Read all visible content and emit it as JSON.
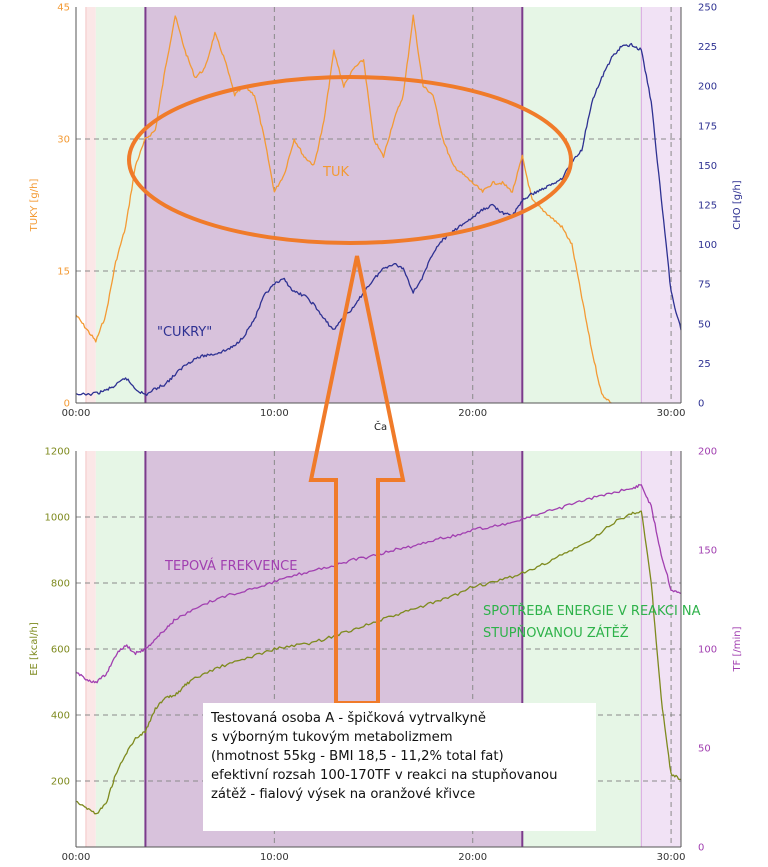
{
  "colors": {
    "fat": "#f39a34",
    "cho": "#2e3192",
    "ee": "#7e8a1e",
    "tf": "#a13fb0",
    "annotation": "#f07b2a",
    "stage_purple": "#d8c2dc",
    "zone_green": "#e6f6e6",
    "zone_pink": "#fbe7e7",
    "zone_lilac": "#f1e2f5",
    "ee_label": "#2eb24a"
  },
  "chart_data": [
    {
      "type": "line",
      "x_unit": "minutes",
      "xlabel": "Ča",
      "x_ticks": [
        "00:00",
        "10:00",
        "20:00",
        "30:00"
      ],
      "xlim": [
        0,
        30.5
      ],
      "ylabel_left": "TUKY [g/h]",
      "ylim_left": [
        0,
        45
      ],
      "y_ticks_left": [
        0,
        15,
        30,
        45
      ],
      "ylabel_right": "CHO [g/h]",
      "ylim_right": [
        0,
        250
      ],
      "y_ticks_right": [
        0,
        25,
        50,
        75,
        100,
        125,
        150,
        175,
        200,
        225,
        250
      ],
      "grid": true,
      "zones": [
        {
          "from": 0.5,
          "to": 1.0,
          "kind": "pink"
        },
        {
          "from": 1.0,
          "to": 3.5,
          "kind": "green"
        },
        {
          "from": 3.5,
          "to": 22.5,
          "kind": "purple"
        },
        {
          "from": 22.5,
          "to": 28.5,
          "kind": "green"
        },
        {
          "from": 28.5,
          "to": 30.5,
          "kind": "lilac"
        }
      ],
      "series": [
        {
          "name": "TUK",
          "axis": "left",
          "points": [
            [
              0,
              10
            ],
            [
              0.5,
              8.5
            ],
            [
              1,
              7
            ],
            [
              1.5,
              10
            ],
            [
              2,
              16
            ],
            [
              2.5,
              20
            ],
            [
              3,
              27
            ],
            [
              3.5,
              30
            ],
            [
              4,
              31
            ],
            [
              4.5,
              38
            ],
            [
              5,
              44
            ],
            [
              5.5,
              40
            ],
            [
              6,
              37
            ],
            [
              6.5,
              38
            ],
            [
              7,
              42
            ],
            [
              7.5,
              39
            ],
            [
              8,
              35
            ],
            [
              8.5,
              36
            ],
            [
              9,
              35
            ],
            [
              9.5,
              30
            ],
            [
              10,
              24
            ],
            [
              10.5,
              26
            ],
            [
              11,
              30
            ],
            [
              11.5,
              28
            ],
            [
              12,
              27
            ],
            [
              12.5,
              32
            ],
            [
              13,
              40
            ],
            [
              13.5,
              36
            ],
            [
              14,
              38
            ],
            [
              14.5,
              39
            ],
            [
              15,
              30
            ],
            [
              15.5,
              28
            ],
            [
              16,
              32
            ],
            [
              16.5,
              35
            ],
            [
              17,
              44
            ],
            [
              17.5,
              36
            ],
            [
              18,
              35
            ],
            [
              18.5,
              30
            ],
            [
              19,
              27
            ],
            [
              19.5,
              26
            ],
            [
              20,
              25
            ],
            [
              20.5,
              24
            ],
            [
              21,
              25
            ],
            [
              21.5,
              25
            ],
            [
              22,
              24
            ],
            [
              22.5,
              28
            ],
            [
              23,
              23
            ],
            [
              23.5,
              22
            ],
            [
              24,
              21
            ],
            [
              24.5,
              20
            ],
            [
              25,
              18
            ],
            [
              25.5,
              12
            ],
            [
              26,
              6
            ],
            [
              26.5,
              1
            ],
            [
              27,
              0
            ]
          ]
        },
        {
          "name": "\"CUKRY\"",
          "axis": "right",
          "points": [
            [
              0,
              5
            ],
            [
              1,
              6
            ],
            [
              1.5,
              8
            ],
            [
              2,
              11
            ],
            [
              2.5,
              16
            ],
            [
              3,
              9
            ],
            [
              3.5,
              5
            ],
            [
              4,
              9
            ],
            [
              4.5,
              12
            ],
            [
              5,
              18
            ],
            [
              5.5,
              24
            ],
            [
              6,
              28
            ],
            [
              6.5,
              30
            ],
            [
              7,
              31
            ],
            [
              7.5,
              33
            ],
            [
              8,
              36
            ],
            [
              8.5,
              43
            ],
            [
              9,
              53
            ],
            [
              9.5,
              68
            ],
            [
              10,
              75
            ],
            [
              10.5,
              78
            ],
            [
              11,
              70
            ],
            [
              11.5,
              68
            ],
            [
              12,
              62
            ],
            [
              12.5,
              53
            ],
            [
              13,
              46
            ],
            [
              13.5,
              55
            ],
            [
              14,
              60
            ],
            [
              14.5,
              70
            ],
            [
              15,
              78
            ],
            [
              15.5,
              85
            ],
            [
              16,
              88
            ],
            [
              16.5,
              85
            ],
            [
              17,
              70
            ],
            [
              17.5,
              80
            ],
            [
              18,
              95
            ],
            [
              18.5,
              103
            ],
            [
              19,
              108
            ],
            [
              19.5,
              113
            ],
            [
              20,
              117
            ],
            [
              20.5,
              122
            ],
            [
              21,
              125
            ],
            [
              21.5,
              120
            ],
            [
              22,
              118
            ],
            [
              22.5,
              128
            ],
            [
              23,
              132
            ],
            [
              23.5,
              135
            ],
            [
              24,
              138
            ],
            [
              24.5,
              142
            ],
            [
              25,
              152
            ],
            [
              25.5,
              160
            ],
            [
              26,
              190
            ],
            [
              26.5,
              205
            ],
            [
              27,
              218
            ],
            [
              27.5,
              225
            ],
            [
              28,
              226
            ],
            [
              28.5,
              223
            ],
            [
              29,
              190
            ],
            [
              29.5,
              130
            ],
            [
              30,
              70
            ],
            [
              30.5,
              46
            ]
          ]
        }
      ],
      "annotations": [
        "TUK",
        "\"CUKRY\""
      ]
    },
    {
      "type": "line",
      "x_unit": "minutes",
      "x_ticks": [
        "00:00",
        "10:00",
        "20:00",
        "30:00"
      ],
      "xlim": [
        0,
        30.5
      ],
      "ylabel_left": "EE [kcal/h]",
      "ylim_left": [
        0,
        1200
      ],
      "y_ticks_left": [
        200,
        400,
        600,
        800,
        1000,
        1200
      ],
      "ylabel_right": "TF [/min]",
      "ylim_right": [
        0,
        200
      ],
      "y_ticks_right": [
        0,
        50,
        100,
        150,
        200
      ],
      "grid": true,
      "zones": [
        {
          "from": 0.5,
          "to": 1.0,
          "kind": "pink"
        },
        {
          "from": 1.0,
          "to": 3.5,
          "kind": "green"
        },
        {
          "from": 3.5,
          "to": 22.5,
          "kind": "purple"
        },
        {
          "from": 22.5,
          "to": 28.5,
          "kind": "green"
        },
        {
          "from": 28.5,
          "to": 30.5,
          "kind": "lilac"
        }
      ],
      "series": [
        {
          "name": "SPOTŘEBA ENERGIE V REAKCI NA STUPŇOVANOU ZÁTĚŽ",
          "axis": "left",
          "points": [
            [
              0,
              140
            ],
            [
              0.5,
              120
            ],
            [
              1,
              100
            ],
            [
              1.5,
              130
            ],
            [
              2,
              220
            ],
            [
              2.5,
              280
            ],
            [
              3,
              330
            ],
            [
              3.5,
              350
            ],
            [
              4,
              420
            ],
            [
              4.5,
              450
            ],
            [
              5,
              460
            ],
            [
              5.5,
              490
            ],
            [
              6,
              510
            ],
            [
              7,
              540
            ],
            [
              8,
              560
            ],
            [
              9,
              580
            ],
            [
              10,
              600
            ],
            [
              11,
              610
            ],
            [
              12,
              620
            ],
            [
              13,
              640
            ],
            [
              14,
              660
            ],
            [
              15,
              680
            ],
            [
              16,
              700
            ],
            [
              17,
              720
            ],
            [
              18,
              740
            ],
            [
              19,
              760
            ],
            [
              20,
              790
            ],
            [
              21,
              800
            ],
            [
              22,
              820
            ],
            [
              23,
              840
            ],
            [
              24,
              870
            ],
            [
              25,
              900
            ],
            [
              26,
              930
            ],
            [
              27,
              980
            ],
            [
              28,
              1010
            ],
            [
              28.5,
              1020
            ],
            [
              29,
              800
            ],
            [
              29.5,
              450
            ],
            [
              30,
              220
            ],
            [
              30.5,
              205
            ]
          ]
        },
        {
          "name": "TEPOVÁ FREKVENCE",
          "axis": "right",
          "points": [
            [
              0,
              88
            ],
            [
              0.5,
              85
            ],
            [
              1,
              83
            ],
            [
              1.5,
              87
            ],
            [
              2,
              97
            ],
            [
              2.5,
              102
            ],
            [
              3,
              98
            ],
            [
              3.5,
              100
            ],
            [
              4,
              105
            ],
            [
              4.5,
              110
            ],
            [
              5,
              115
            ],
            [
              6,
              120
            ],
            [
              7,
              125
            ],
            [
              8,
              128
            ],
            [
              9,
              131
            ],
            [
              10,
              134
            ],
            [
              11,
              137
            ],
            [
              12,
              140
            ],
            [
              13,
              142
            ],
            [
              14,
              145
            ],
            [
              15,
              147
            ],
            [
              16,
              150
            ],
            [
              17,
              152
            ],
            [
              18,
              155
            ],
            [
              19,
              157
            ],
            [
              20,
              160
            ],
            [
              21,
              162
            ],
            [
              22,
              164
            ],
            [
              23,
              167
            ],
            [
              24,
              170
            ],
            [
              25,
              173
            ],
            [
              26,
              176
            ],
            [
              27,
              179
            ],
            [
              28,
              181
            ],
            [
              28.5,
              183
            ],
            [
              29,
              172
            ],
            [
              29.5,
              148
            ],
            [
              30,
              130
            ],
            [
              30.5,
              128
            ]
          ]
        }
      ],
      "annotations": [
        "TEPOVÁ FREKVENCE",
        "SPOTŘEBA ENERGIE V REAKCI NA",
        "STUPŇOVANOU ZÁTĚŽ"
      ]
    }
  ],
  "labels": {
    "fat": "TUK",
    "cho": "\"CUKRY\"",
    "tf": "TEPOVÁ FREKVENCE",
    "ee_line1": "SPOTŘEBA ENERGIE V REAKCI NA",
    "ee_line2": "STUPŇOVANOU ZÁTĚŽ"
  },
  "note": {
    "lines": [
      "Testovaná osoba A - špičková vytrvalkyně",
      "s výborným tukovým metabolizmem",
      "(hmotnost 55kg - BMI 18,5 - 11,2% total fat)",
      "efektivní rozsah 100-170TF v reakci na stupňovanou",
      "zátěž - fialový výsek na oranžové křivce"
    ]
  }
}
